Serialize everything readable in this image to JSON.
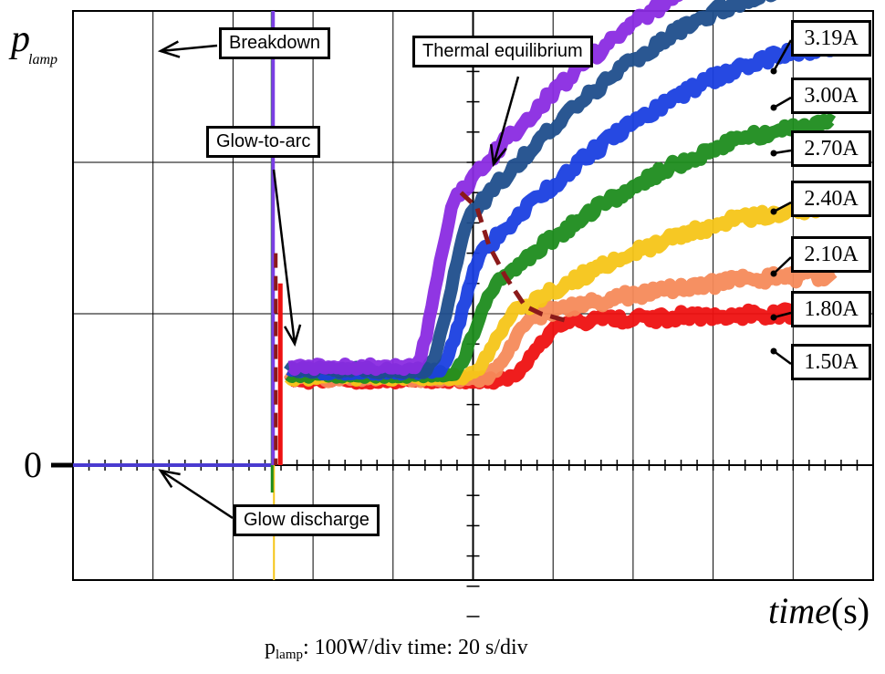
{
  "chart_data": {
    "type": "line",
    "ylabel": "p",
    "ylabel_sub": "lamp",
    "xlabel": "time",
    "xunit": "(s)",
    "zero_label": "0",
    "scale_text": {
      "p_sym": "p",
      "p_sub": "lamp",
      "p_rest": ": 100W/div    time: 20 s/div"
    },
    "xlim": [
      -50,
      150
    ],
    "ylim": [
      -100,
      300
    ],
    "grid": true,
    "breakdown_time": 0,
    "series": [
      {
        "name": "3.19A",
        "color": "#8a2be2",
        "glow": 65,
        "t_arc": 47,
        "p_arc": 180,
        "p_final": 345,
        "trans_start": 35
      },
      {
        "name": "3.00A",
        "color": "#1f4e8c",
        "glow": 63,
        "t_arc": 51,
        "p_arc": 170,
        "p_final": 320,
        "trans_start": 38
      },
      {
        "name": "2.70A",
        "color": "#1a3fe0",
        "glow": 62,
        "t_arc": 54,
        "p_arc": 145,
        "p_final": 275,
        "trans_start": 41
      },
      {
        "name": "2.40A",
        "color": "#1e8c1e",
        "glow": 60,
        "t_arc": 58,
        "p_arc": 125,
        "p_final": 225,
        "trans_start": 44
      },
      {
        "name": "2.10A",
        "color": "#f5c518",
        "glow": 58,
        "t_arc": 63,
        "p_arc": 105,
        "p_final": 170,
        "trans_start": 48
      },
      {
        "name": "1.80A",
        "color": "#f58a5a",
        "glow": 57,
        "t_arc": 67,
        "p_arc": 100,
        "p_final": 125,
        "trans_start": 52
      },
      {
        "name": "1.50A",
        "color": "#ee1111",
        "glow": 56,
        "t_arc": 74,
        "p_arc": 95,
        "p_final": 100,
        "trans_start": 57
      }
    ],
    "annotations": {
      "breakdown": "Breakdown",
      "thermal": "Thermal equilibrium",
      "glow_to_arc": "Glow-to-arc",
      "glow_discharge": "Glow discharge"
    }
  }
}
